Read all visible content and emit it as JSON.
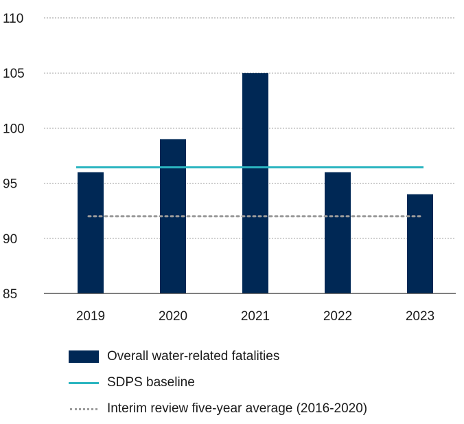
{
  "chart_data": {
    "type": "bar",
    "title": "",
    "xlabel": "",
    "ylabel": "",
    "categories": [
      "2019",
      "2020",
      "2021",
      "2022",
      "2023"
    ],
    "series": [
      {
        "name": "Overall water-related fatalities",
        "type": "bar",
        "values": [
          96,
          99,
          105,
          96,
          94
        ],
        "color": "#002855"
      }
    ],
    "reference_lines": [
      {
        "name": "SDPS baseline",
        "value": 96,
        "style": "solid",
        "color": "#2bb5c0"
      },
      {
        "name": "Interim review five-year average (2016-2020)",
        "value": 92,
        "style": "dotted",
        "color": "#9a9a9a"
      }
    ],
    "ylim": [
      85,
      110
    ],
    "yticks": [
      85,
      90,
      95,
      100,
      105,
      110
    ],
    "grid": "horizontal dotted",
    "legend_position": "bottom"
  }
}
